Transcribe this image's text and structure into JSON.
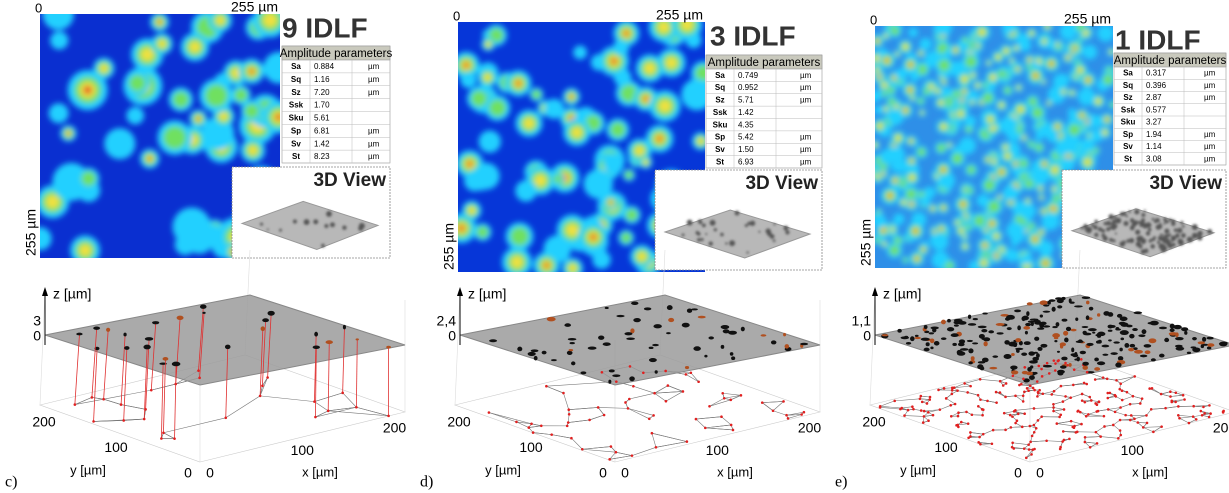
{
  "panels": [
    {
      "label": "c)",
      "title": "9 IDLF",
      "heatmap": {
        "origin": "0",
        "x_end": "255 µm",
        "y_end": "255 µm"
      },
      "table": {
        "header": "Amplitude parameters",
        "rows": [
          [
            "Sa",
            "0.884",
            "µm"
          ],
          [
            "Sq",
            "1.16",
            "µm"
          ],
          [
            "Sz",
            "7.20",
            "µm"
          ],
          [
            "Ssk",
            "1.70"
          ],
          [
            "Sku",
            "5.61"
          ],
          [
            "Sp",
            "6.81",
            "µm"
          ],
          [
            "Sv",
            "1.42",
            "µm"
          ],
          [
            "St",
            "8.23",
            "µm"
          ]
        ]
      },
      "view_label": "3D View",
      "plot": {
        "z_label": "z [µm]",
        "z_ticks": [
          "3",
          "0"
        ],
        "y_label": "y [µm]",
        "y_ticks": [
          "200",
          "100",
          "0"
        ],
        "x_label": "x [µm]",
        "x_ticks": [
          "0",
          "100",
          "200"
        ]
      }
    },
    {
      "label": "d)",
      "title": "3 IDLF",
      "heatmap": {
        "origin": "0",
        "x_end": "255 µm",
        "y_end": "255 µm"
      },
      "table": {
        "header": "Amplitude parameters",
        "rows": [
          [
            "Sa",
            "0.749",
            "µm"
          ],
          [
            "Sq",
            "0.952",
            "µm"
          ],
          [
            "Sz",
            "5.71",
            "µm"
          ],
          [
            "Ssk",
            "1.42"
          ],
          [
            "Sku",
            "4.35"
          ],
          [
            "Sp",
            "5.42",
            "µm"
          ],
          [
            "Sv",
            "1.50",
            "µm"
          ],
          [
            "St",
            "6.93",
            "µm"
          ]
        ]
      },
      "view_label": "3D View",
      "plot": {
        "z_label": "z [µm]",
        "z_ticks": [
          "2,4",
          "0"
        ],
        "y_label": "y [µm]",
        "y_ticks": [
          "200",
          "100",
          "0"
        ],
        "x_label": "x [µm]",
        "x_ticks": [
          "0",
          "100",
          "200"
        ]
      }
    },
    {
      "label": "e)",
      "title": "1 IDLF",
      "heatmap": {
        "origin": "0",
        "x_end": "255 µm",
        "y_end": "255 µm"
      },
      "table": {
        "header": "Amplitude parameters",
        "rows": [
          [
            "Sa",
            "0.317",
            "µm"
          ],
          [
            "Sq",
            "0.396",
            "µm"
          ],
          [
            "Sz",
            "2.87",
            "µm"
          ],
          [
            "Ssk",
            "0.577"
          ],
          [
            "Sku",
            "3.27"
          ],
          [
            "Sp",
            "1.94",
            "µm"
          ],
          [
            "Sv",
            "1.14",
            "µm"
          ],
          [
            "St",
            "3.08",
            "µm"
          ]
        ]
      },
      "view_label": "3D View",
      "plot": {
        "z_label": "z [µm]",
        "z_ticks": [
          "1,1",
          "0"
        ],
        "y_label": "y [µm]",
        "y_ticks": [
          "200",
          "100",
          "0"
        ],
        "x_label": "x [µm]",
        "x_ticks": [
          "0",
          "100",
          "200"
        ]
      }
    }
  ]
}
